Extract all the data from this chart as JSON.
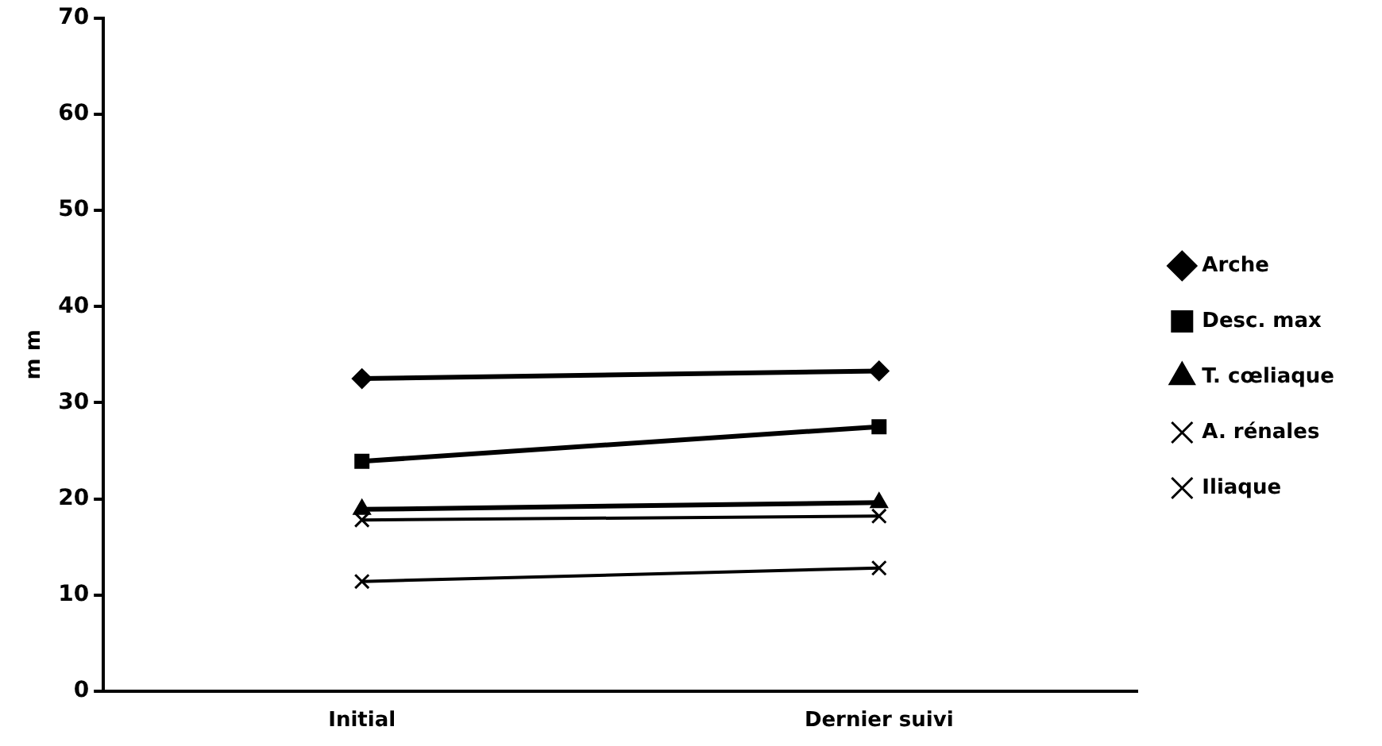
{
  "chart_data": {
    "type": "line",
    "ylabel": "m m",
    "categories": [
      "Initial",
      "Dernier suivi"
    ],
    "series": [
      {
        "name": "Arche",
        "color": "#000000",
        "marker": "diamond",
        "values": [
          32.5,
          33.3
        ]
      },
      {
        "name": "Desc. max",
        "color": "#000000",
        "marker": "square",
        "values": [
          23.9,
          27.5
        ]
      },
      {
        "name": "T. cœliaque",
        "color": "#000000",
        "marker": "triangle",
        "values": [
          18.9,
          19.6
        ]
      },
      {
        "name": "A. rénales",
        "color": "#000000",
        "marker": "cross",
        "values": [
          17.8,
          18.2
        ]
      },
      {
        "name": "Iliaque",
        "color": "#000000",
        "marker": "cross",
        "values": [
          11.4,
          12.8
        ]
      }
    ],
    "ylim": [
      0,
      70
    ],
    "yticks": [
      0,
      10,
      20,
      30,
      40,
      50,
      60,
      70
    ],
    "grid": false,
    "legend": "right",
    "line_style": "solid"
  }
}
